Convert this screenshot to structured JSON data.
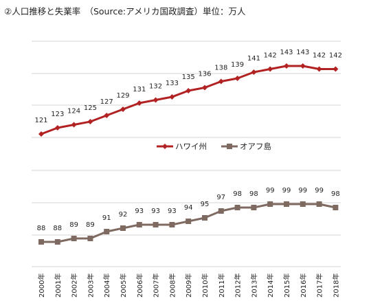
{
  "chart_data": {
    "type": "line",
    "title": "②人口推移と失業率　（Source:アメリカ国政調査）単位：万人",
    "categories": [
      "2000年",
      "2001年",
      "2002年",
      "2003年",
      "2004年",
      "2005年",
      "2006年",
      "2007年",
      "2008年",
      "2009年",
      "2010年",
      "2011年",
      "2012年",
      "2013年",
      "2014年",
      "2015年",
      "2016年",
      "2017年",
      "2018年"
    ],
    "series": [
      {
        "name": "ハワイ州",
        "color": "#b22222",
        "marker": "diamond",
        "values": [
          121,
          123,
          124,
          125,
          127,
          129,
          131,
          132,
          133,
          135,
          136,
          138,
          139,
          141,
          142,
          143,
          143,
          142,
          142
        ]
      },
      {
        "name": "オアフ島",
        "color": "#7f6a62",
        "marker": "square",
        "values": [
          88,
          88,
          89,
          89,
          91,
          92,
          93,
          93,
          93,
          94,
          95,
          97,
          98,
          98,
          99,
          99,
          99,
          99,
          98
        ]
      }
    ],
    "legend": "center",
    "grid": true
  }
}
